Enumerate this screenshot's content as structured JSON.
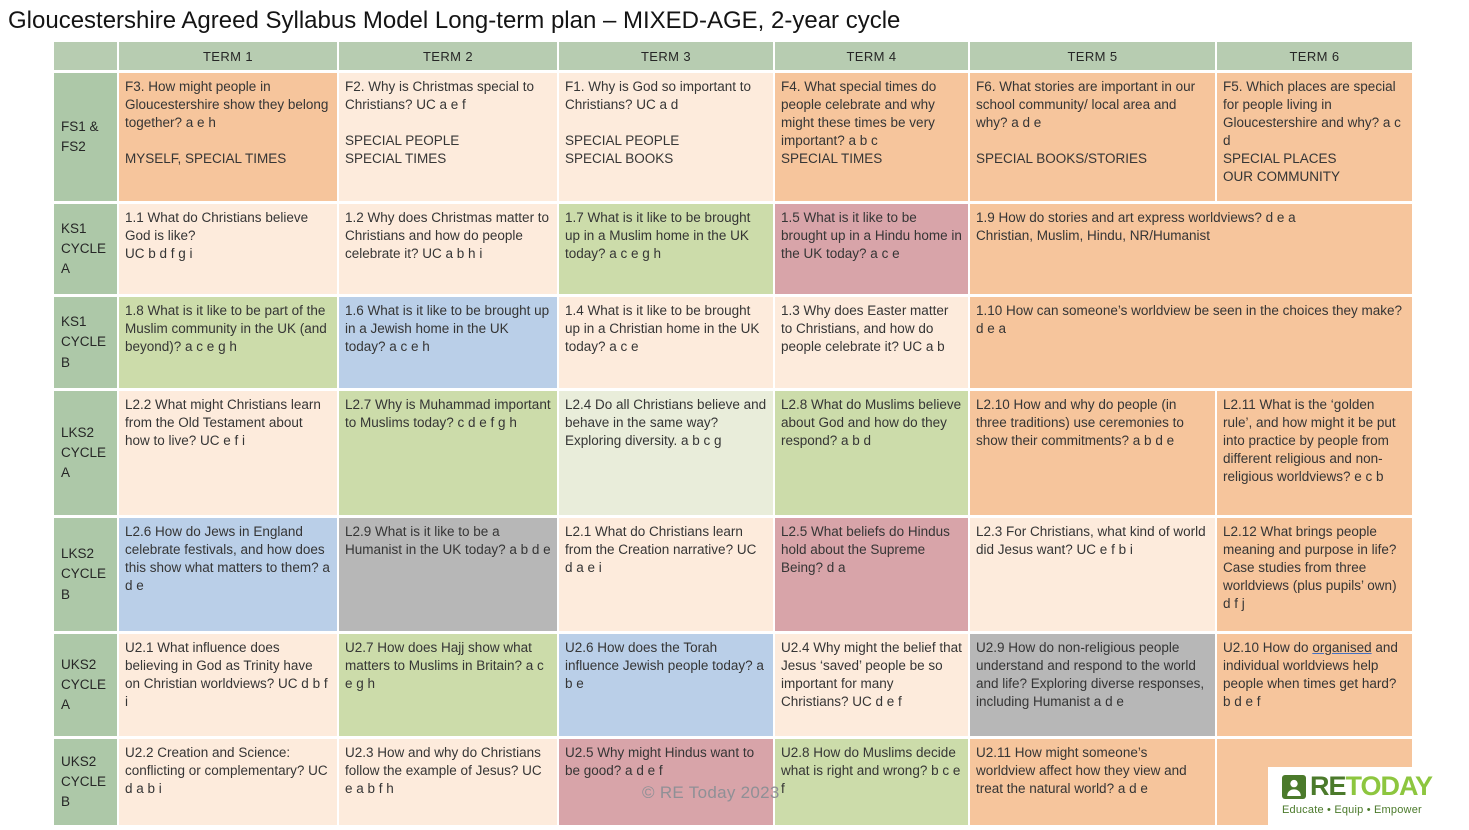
{
  "title": "Gloucestershire Agreed Syllabus Model Long-term plan – MIXED-AGE, 2-year cycle",
  "watermark": "© RE Today 2023",
  "logo": {
    "brand_re": "RE",
    "brand_today": "TODAY",
    "tagline": "Educate • Equip • Empower",
    "dark_green": "#4b7a2b",
    "light_green": "#8dc63f"
  },
  "colors": {
    "header": "#b7ccb1",
    "row_header": "#adc8a8",
    "orange": "#f6c59c",
    "peach": "#fdebdc",
    "green": "#ccdcaa",
    "pale_green": "#e9edda",
    "blue": "#bacfe8",
    "rose": "#d8a4a9",
    "gray": "#b7b7b7"
  },
  "table": {
    "terms": [
      "TERM 1",
      "TERM 2",
      "TERM 3",
      "TERM 4",
      "TERM 5",
      "TERM 6"
    ],
    "rows": [
      {
        "label": "FS1 &\nFS2",
        "cells": [
          {
            "text": "F3. How might people in Gloucestershire show they belong together? a e h\n\nMYSELF, SPECIAL TIMES",
            "color": "orange"
          },
          {
            "text": "F2. Why is Christmas special to Christians? UC a e f\n\nSPECIAL PEOPLE\nSPECIAL TIMES",
            "color": "peach"
          },
          {
            "text": "F1. Why is God so important to Christians? UC a d\n\nSPECIAL PEOPLE\nSPECIAL BOOKS",
            "color": "peach"
          },
          {
            "text": "F4. What special times do people celebrate and why might these times be very important? a b c\nSPECIAL TIMES",
            "color": "orange"
          },
          {
            "text": "F6. What stories are important in our school community/ local area and why? a d e\n\nSPECIAL BOOKS/STORIES",
            "color": "orange"
          },
          {
            "text": "F5. Which places are special for people living in Gloucestershire and why? a c d\nSPECIAL PLACES\nOUR COMMUNITY",
            "color": "orange"
          }
        ]
      },
      {
        "label": "KS1\nCYCLE A",
        "cells": [
          {
            "text": "1.1 What do Christians believe God is like?\nUC b d f g i",
            "color": "peach"
          },
          {
            "text": "1.2 Why does Christmas matter to Christians and how do people celebrate it? UC a b h i",
            "color": "peach"
          },
          {
            "text": "1.7 What is it like to be brought up in a Muslim home in the UK today? a c e g h",
            "color": "green"
          },
          {
            "text": "1.5 What is it like to be brought up in a Hindu home in the UK today? a c e",
            "color": "rose"
          },
          {
            "text": "1.9 How do stories and art express worldviews? d e a\nChristian, Muslim, Hindu, NR/Humanist",
            "color": "orange",
            "colspan": 2
          }
        ]
      },
      {
        "label": "KS1\nCYCLE B",
        "cells": [
          {
            "text": "1.8 What is it like to be part of the Muslim community in the UK (and beyond)? a c e g h",
            "color": "green"
          },
          {
            "text": "1.6 What is it like to be brought up in a Jewish home in the UK today? a c e h",
            "color": "blue"
          },
          {
            "text": "1.4 What is it like to be brought up in a Christian home in the UK today? a c e",
            "color": "peach"
          },
          {
            "text": "1.3 Why does Easter matter to Christians, and how do people celebrate it? UC a b",
            "color": "peach"
          },
          {
            "text": "1.10 How can someone’s worldview be seen in the choices they make? d e a",
            "color": "orange",
            "colspan": 2
          }
        ]
      },
      {
        "label": "LKS2\nCYCLE A",
        "cells": [
          {
            "text": "L2.2 What might Christians learn from the Old Testament about how to live? UC e f i",
            "color": "peach"
          },
          {
            "text": "L2.7 Why is Muhammad important to Muslims today? c d e f g h",
            "color": "green"
          },
          {
            "text": "L2.4 Do all Christians believe and behave in the same way? Exploring diversity. a b c g",
            "color": "pale_green"
          },
          {
            "text": "L2.8 What do Muslims believe about God and how do they respond? a b d",
            "color": "green"
          },
          {
            "text": "L2.10 How and why do people (in three traditions) use ceremonies to show their commitments?  a b d e",
            "color": "orange"
          },
          {
            "text": "L2.11 What is the ‘golden rule’, and how might it be put into practice by people from different religious and non-religious worldviews? e c b",
            "color": "orange"
          }
        ]
      },
      {
        "label": "LKS2\nCYCLE B",
        "cells": [
          {
            "text": "L2.6 How do Jews in England celebrate festivals, and how does this show what matters to them? a d e",
            "color": "blue"
          },
          {
            "text": "L2.9 What is it like to be a Humanist in the UK today? a b d e",
            "color": "gray"
          },
          {
            "text": "L2.1 What do Christians learn from the Creation narrative? UC d a e i",
            "color": "peach"
          },
          {
            "text": "L2.5 What beliefs do Hindus hold about the Supreme Being? d a",
            "color": "rose"
          },
          {
            "text": "L2.3 For Christians, what kind of world did Jesus want? UC e f b i",
            "color": "peach"
          },
          {
            "text": "L2.12 What brings people meaning and purpose in life? Case studies from three worldviews (plus pupils’ own) d f j",
            "color": "orange"
          }
        ]
      },
      {
        "label": "UKS2\nCYCLE A",
        "cells": [
          {
            "text": "U2.1 What influence does believing in God as Trinity have on Christian worldviews? UC d b f i",
            "color": "peach"
          },
          {
            "text": "U2.7 How does Hajj show what matters to Muslims in Britain? a c e g h",
            "color": "green"
          },
          {
            "text": "U2.6 How does the Torah influence Jewish people today? a b e",
            "color": "blue"
          },
          {
            "text": "U2.4 Why might the belief that Jesus ‘saved’ people be so important for many Christians? UC d e f",
            "color": "peach"
          },
          {
            "text": "U2.9 How do non-religious people understand and respond to the world and life? Exploring diverse responses, including Humanist a d e",
            "color": "gray"
          },
          {
            "text": "U2.10 How do organised and individual worldviews help people when times get hard? b d e f",
            "color": "orange",
            "underline": "organised"
          }
        ]
      },
      {
        "label": "UKS2\nCYCLE B",
        "cells": [
          {
            "text": "U2.2 Creation and Science: conflicting or complementary? UC d a b i",
            "color": "peach"
          },
          {
            "text": "U2.3 How and why do Christians follow the example of Jesus? UC e a b f h",
            "color": "peach"
          },
          {
            "text": "U2.5 Why might Hindus want to be good? a d e f",
            "color": "rose"
          },
          {
            "text": "U2.8 How do Muslims decide what is right and wrong? b c e f",
            "color": "green"
          },
          {
            "text": "U2.11 How might someone’s worldview affect how they view and treat the natural world? a d e",
            "color": "orange"
          },
          {
            "text": "",
            "color": "orange"
          }
        ]
      }
    ]
  }
}
